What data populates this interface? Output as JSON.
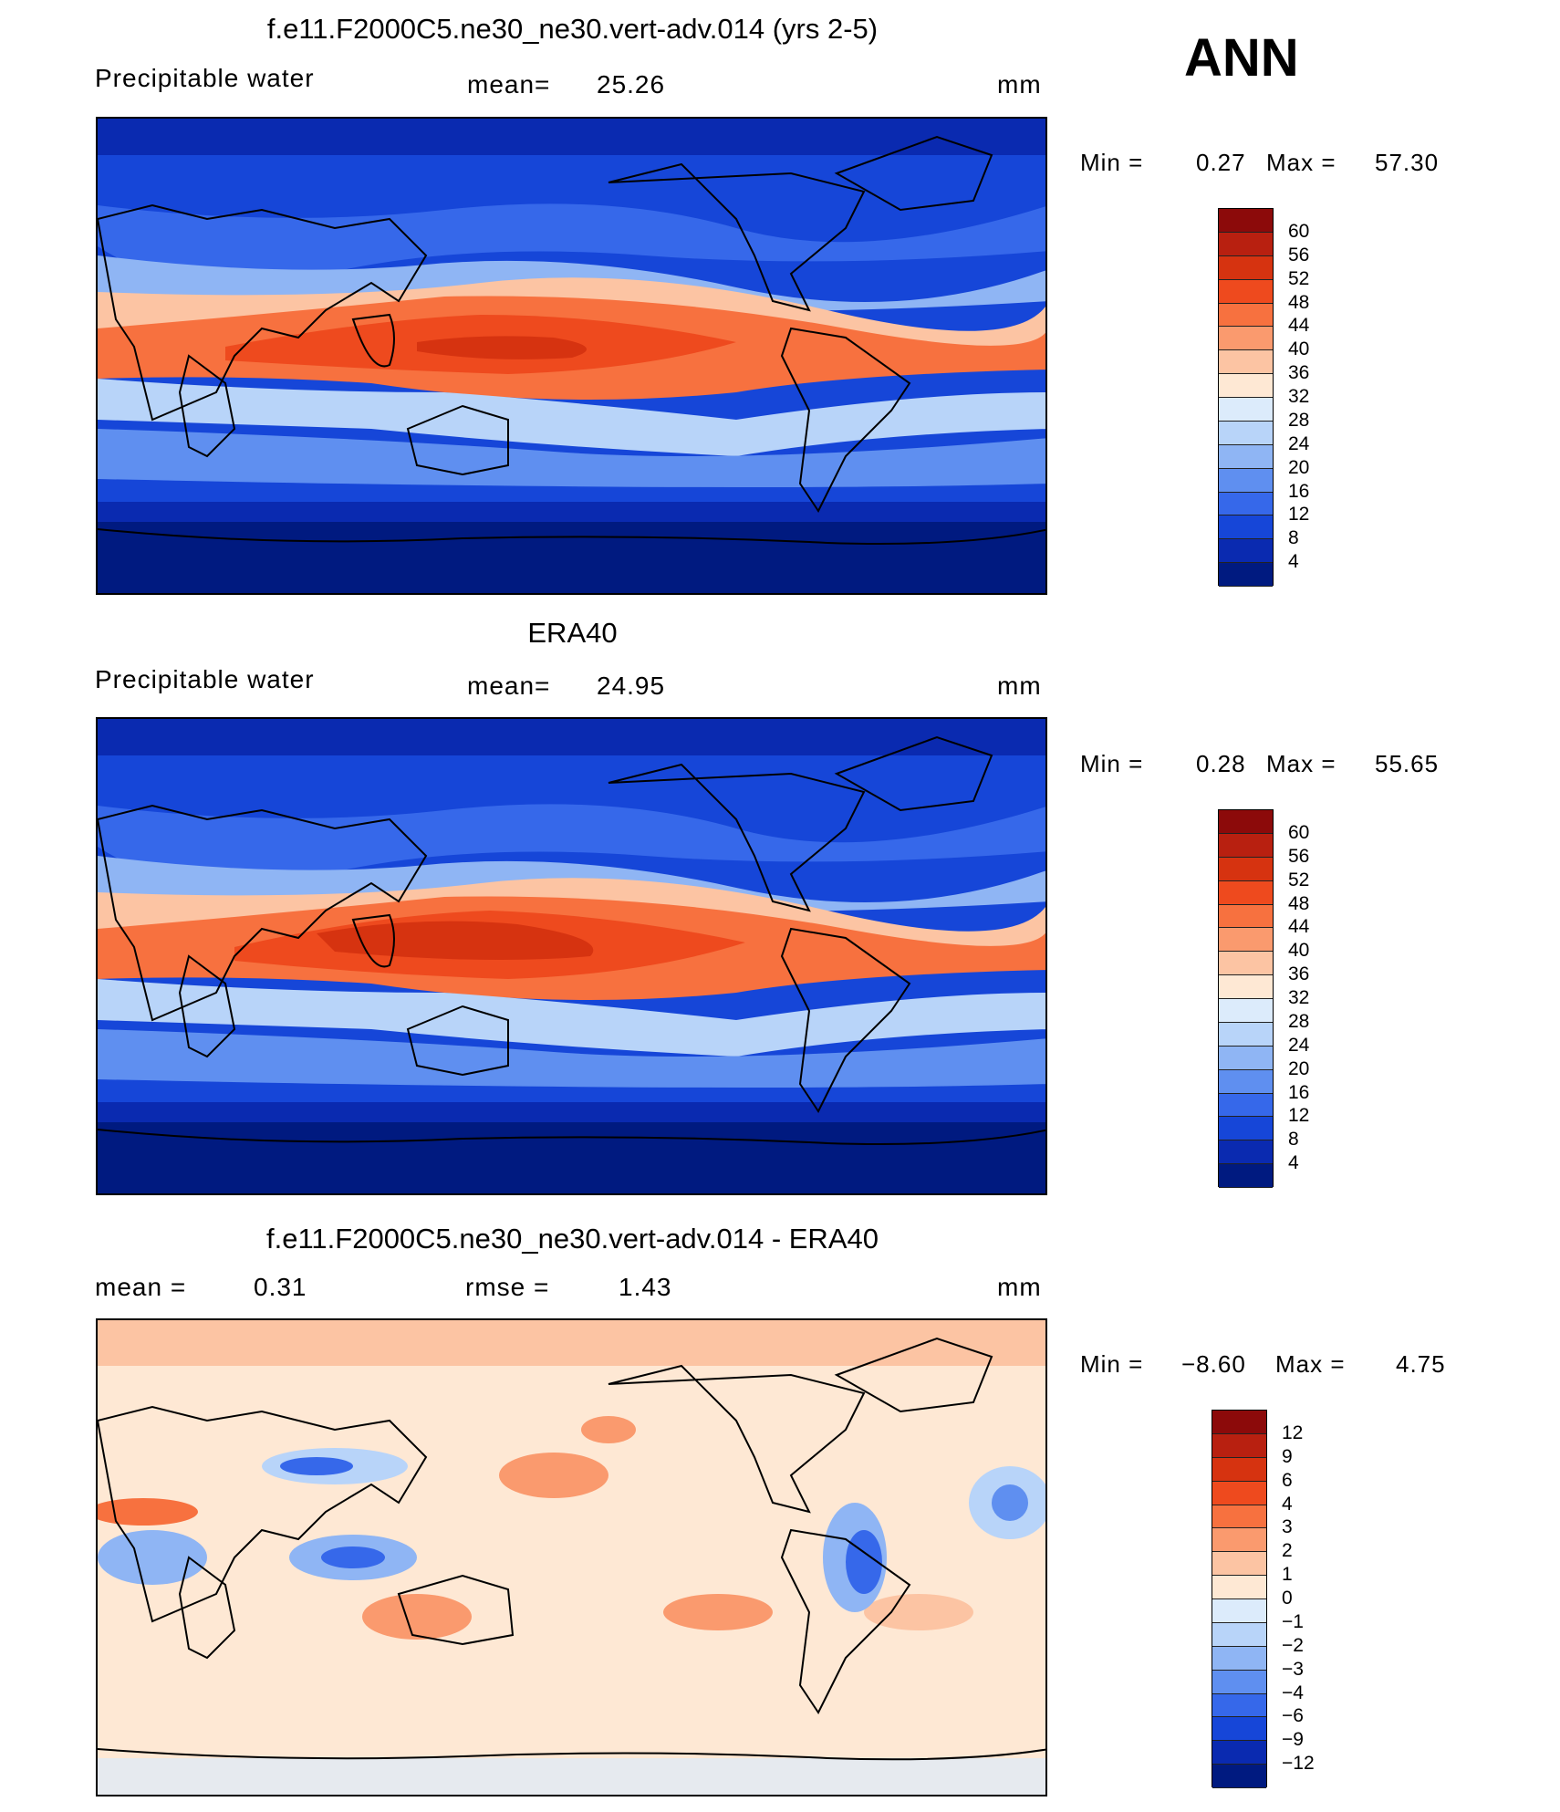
{
  "ann_label": "ANN",
  "units": "mm",
  "panel1": {
    "title": "f.e11.F2000C5.ne30_ne30.vert-adv.014 (yrs 2-5)",
    "left_label": "Precipitable  water",
    "mean_label": "mean=",
    "mean_value": "25.26",
    "min_label": "Min  =",
    "min_value": "0.27",
    "max_label": "Max  =",
    "max_value": "57.30"
  },
  "panel2": {
    "title": "ERA40",
    "left_label": "Precipitable  water",
    "mean_label": "mean=",
    "mean_value": "24.95",
    "min_label": "Min  =",
    "min_value": "0.28",
    "max_label": "Max  =",
    "max_value": "55.65"
  },
  "panel3": {
    "title": "f.e11.F2000C5.ne30_ne30.vert-adv.014 - ERA40",
    "mean_label": "mean  =",
    "mean_value": "0.31",
    "rmse_label": "rmse  =",
    "rmse_value": "1.43",
    "min_label": "Min  =",
    "min_value": "−8.60",
    "max_label": "Max  =",
    "max_value": "4.75"
  },
  "colorbar_main": {
    "labels": [
      "60",
      "56",
      "52",
      "48",
      "44",
      "40",
      "36",
      "32",
      "28",
      "24",
      "20",
      "16",
      "12",
      "8",
      "4"
    ],
    "colors": [
      "#8c0a0a",
      "#b82010",
      "#d63310",
      "#ee4a1e",
      "#f7713f",
      "#fa9a6e",
      "#fcc4a3",
      "#fee8d4",
      "#dcebfb",
      "#b8d4f9",
      "#8fb5f4",
      "#5f8ff0",
      "#3668ea",
      "#1646d8",
      "#0a2ab0",
      "#001a80"
    ]
  },
  "colorbar_diff": {
    "labels": [
      "12",
      "9",
      "6",
      "4",
      "3",
      "2",
      "1",
      "0",
      "−1",
      "−2",
      "−3",
      "−4",
      "−6",
      "−9",
      "−12"
    ],
    "colors": [
      "#8c0a0a",
      "#b82010",
      "#d63310",
      "#ee4a1e",
      "#f7713f",
      "#fa9a6e",
      "#fcc4a3",
      "#fee8d4",
      "#dcebfb",
      "#b8d4f9",
      "#8fb5f4",
      "#5f8ff0",
      "#3668ea",
      "#1646d8",
      "#0a2ab0",
      "#001a80"
    ]
  }
}
